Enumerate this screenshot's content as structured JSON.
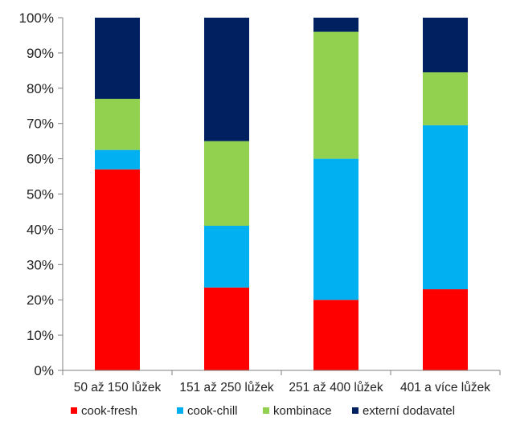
{
  "chart_data": {
    "type": "bar",
    "stacked": "percent",
    "categories": [
      "50 až 150 lůžek",
      "151 až 250 lůžek",
      "251 až 400 lůžek",
      "401 a více lůžek"
    ],
    "series": [
      {
        "name": "cook-fresh",
        "color": "#ff0000",
        "values": [
          57,
          23.5,
          20,
          23
        ]
      },
      {
        "name": "cook-chill",
        "color": "#00b0f0",
        "values": [
          5.5,
          17.5,
          40,
          46.5
        ]
      },
      {
        "name": "kombinace",
        "color": "#92d050",
        "values": [
          14.5,
          24,
          36,
          15
        ]
      },
      {
        "name": "externí dodavatel",
        "color": "#002060",
        "values": [
          23,
          35,
          4,
          15.5
        ]
      }
    ],
    "yticks": [
      "0%",
      "10%",
      "20%",
      "30%",
      "40%",
      "50%",
      "60%",
      "70%",
      "80%",
      "90%",
      "100%"
    ],
    "ylim": [
      0,
      100
    ],
    "grid": false,
    "legend_position": "bottom"
  }
}
